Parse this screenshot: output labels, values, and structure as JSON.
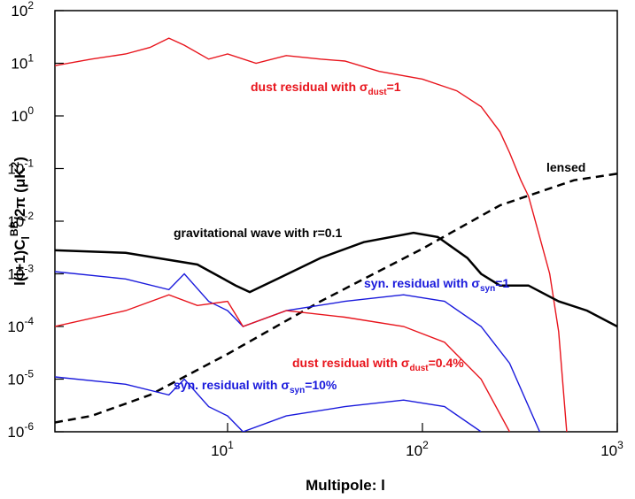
{
  "chart_data": {
    "type": "line",
    "xlabel": "Multipole: l",
    "ylabel": {
      "text": "l(l+1)C",
      "sub": "l",
      "sup": "BB",
      "tail": "/2π (μK",
      "tailsup": "2",
      "end": ")"
    },
    "xscale": "log",
    "yscale": "log",
    "xlim": [
      1.3,
      1000
    ],
    "ylim": [
      1e-06,
      100
    ],
    "xticks": [
      {
        "value": 10,
        "label": "10",
        "exponent": "1"
      },
      {
        "value": 100,
        "label": "10",
        "exponent": "2"
      },
      {
        "value": 1000,
        "label": "10",
        "exponent": "3"
      }
    ],
    "yticks": [
      {
        "value": 100,
        "label": "10",
        "exponent": "2"
      },
      {
        "value": 10,
        "label": "10",
        "exponent": "1"
      },
      {
        "value": 1,
        "label": "10",
        "exponent": "0"
      },
      {
        "value": 0.1,
        "label": "10",
        "exponent": "-1"
      },
      {
        "value": 0.01,
        "label": "10",
        "exponent": "-2"
      },
      {
        "value": 0.001,
        "label": "10",
        "exponent": "-3"
      },
      {
        "value": 0.0001,
        "label": "10",
        "exponent": "-4"
      },
      {
        "value": 1e-05,
        "label": "10",
        "exponent": "-5"
      },
      {
        "value": 1e-06,
        "label": "10",
        "exponent": "-6"
      }
    ],
    "series": [
      {
        "name": {
          "text": "dust residual with σ",
          "sub": "dust",
          "tail": "=1"
        },
        "color": "#e8141c",
        "dash": false,
        "x": [
          1.3,
          2,
          3,
          4,
          5,
          6,
          8,
          10,
          14,
          20,
          30,
          40,
          60,
          100,
          150,
          200,
          250,
          280,
          320,
          350,
          400,
          450,
          500,
          550
        ],
        "values": [
          9,
          12,
          15,
          20,
          30,
          22,
          12,
          15,
          10,
          14,
          12,
          11,
          7,
          5,
          3,
          1.5,
          0.5,
          0.2,
          0.06,
          0.03,
          0.005,
          0.001,
          8e-05,
          1e-06
        ]
      },
      {
        "name": {
          "text": "lensed"
        },
        "color": "#000000",
        "dash": true,
        "x": [
          1.3,
          2,
          4,
          10,
          30,
          100,
          250,
          600,
          1000
        ],
        "values": [
          1.5e-06,
          2e-06,
          5e-06,
          3e-05,
          0.0003,
          0.003,
          0.02,
          0.06,
          0.08
        ]
      },
      {
        "name": {
          "text": "gravitational wave with r=0.1"
        },
        "color": "#000000",
        "dash": false,
        "x": [
          1.3,
          3,
          7,
          11,
          13,
          18,
          30,
          50,
          90,
          120,
          170,
          200,
          250,
          350,
          500,
          700,
          1000
        ],
        "values": [
          0.0028,
          0.0025,
          0.0015,
          0.0006,
          0.00045,
          0.0008,
          0.002,
          0.004,
          0.006,
          0.005,
          0.002,
          0.001,
          0.0006,
          0.0006,
          0.0003,
          0.0002,
          0.0001
        ]
      },
      {
        "name": {
          "text": "syn. residual with σ",
          "sub": "syn",
          "tail": "=1"
        },
        "color": "#1a1adc",
        "dash": false,
        "x": [
          1.3,
          3,
          5,
          6,
          8,
          10,
          12,
          20,
          40,
          80,
          130,
          200,
          280,
          400
        ],
        "values": [
          0.0011,
          0.0008,
          0.0005,
          0.001,
          0.0003,
          0.0002,
          0.0001,
          0.0002,
          0.0003,
          0.0004,
          0.0003,
          0.0001,
          2e-05,
          1e-06
        ]
      },
      {
        "name": {
          "text": "dust residual with σ",
          "sub": "dust",
          "tail": "=0.4%"
        },
        "color": "#e8141c",
        "dash": false,
        "x": [
          1.3,
          3,
          5,
          7,
          10,
          12,
          20,
          40,
          80,
          130,
          200,
          280
        ],
        "values": [
          0.0001,
          0.0002,
          0.0004,
          0.00025,
          0.0003,
          0.0001,
          0.0002,
          0.00015,
          0.0001,
          5e-05,
          1e-05,
          1e-06
        ]
      },
      {
        "name": {
          "text": "syn. residual with σ",
          "sub": "syn",
          "tail": "=10%"
        },
        "color": "#1a1adc",
        "dash": false,
        "x": [
          1.3,
          3,
          5,
          6,
          8,
          10,
          12,
          20,
          40,
          80,
          130,
          200
        ],
        "values": [
          1.1e-05,
          8e-06,
          5e-06,
          1e-05,
          3e-06,
          2e-06,
          1e-06,
          2e-06,
          3e-06,
          4e-06,
          3e-06,
          1e-06
        ]
      }
    ]
  }
}
